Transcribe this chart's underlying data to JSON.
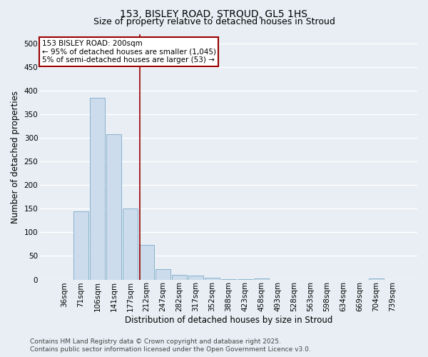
{
  "title1": "153, BISLEY ROAD, STROUD, GL5 1HS",
  "title2": "Size of property relative to detached houses in Stroud",
  "xlabel": "Distribution of detached houses by size in Stroud",
  "ylabel": "Number of detached properties",
  "bar_color": "#cddcec",
  "bar_edge_color": "#7aaac8",
  "bar_edge_width": 0.6,
  "categories": [
    "36sqm",
    "71sqm",
    "106sqm",
    "141sqm",
    "177sqm",
    "212sqm",
    "247sqm",
    "282sqm",
    "317sqm",
    "352sqm",
    "388sqm",
    "423sqm",
    "458sqm",
    "493sqm",
    "528sqm",
    "563sqm",
    "598sqm",
    "634sqm",
    "669sqm",
    "704sqm",
    "739sqm"
  ],
  "values": [
    0,
    145,
    385,
    308,
    150,
    73,
    22,
    10,
    8,
    4,
    1,
    1,
    3,
    0,
    0,
    0,
    0,
    0,
    0,
    3,
    0
  ],
  "vline_x": 4.57,
  "vline_color": "#990000",
  "annotation_text": "153 BISLEY ROAD: 200sqm\n← 95% of detached houses are smaller (1,045)\n5% of semi-detached houses are larger (53) →",
  "annotation_box_color": "#990000",
  "annotation_bg": "#ffffff",
  "ylim": [
    0,
    520
  ],
  "yticks": [
    0,
    50,
    100,
    150,
    200,
    250,
    300,
    350,
    400,
    450,
    500
  ],
  "footnote": "Contains HM Land Registry data © Crown copyright and database right 2025.\nContains public sector information licensed under the Open Government Licence v3.0.",
  "background_color": "#e8eef4",
  "plot_bg_color": "#e8eef4",
  "grid_color": "#ffffff",
  "title_fontsize": 10,
  "subtitle_fontsize": 9,
  "label_fontsize": 8.5,
  "tick_fontsize": 7.5,
  "annotation_fontsize": 7.5,
  "footnote_fontsize": 6.5
}
